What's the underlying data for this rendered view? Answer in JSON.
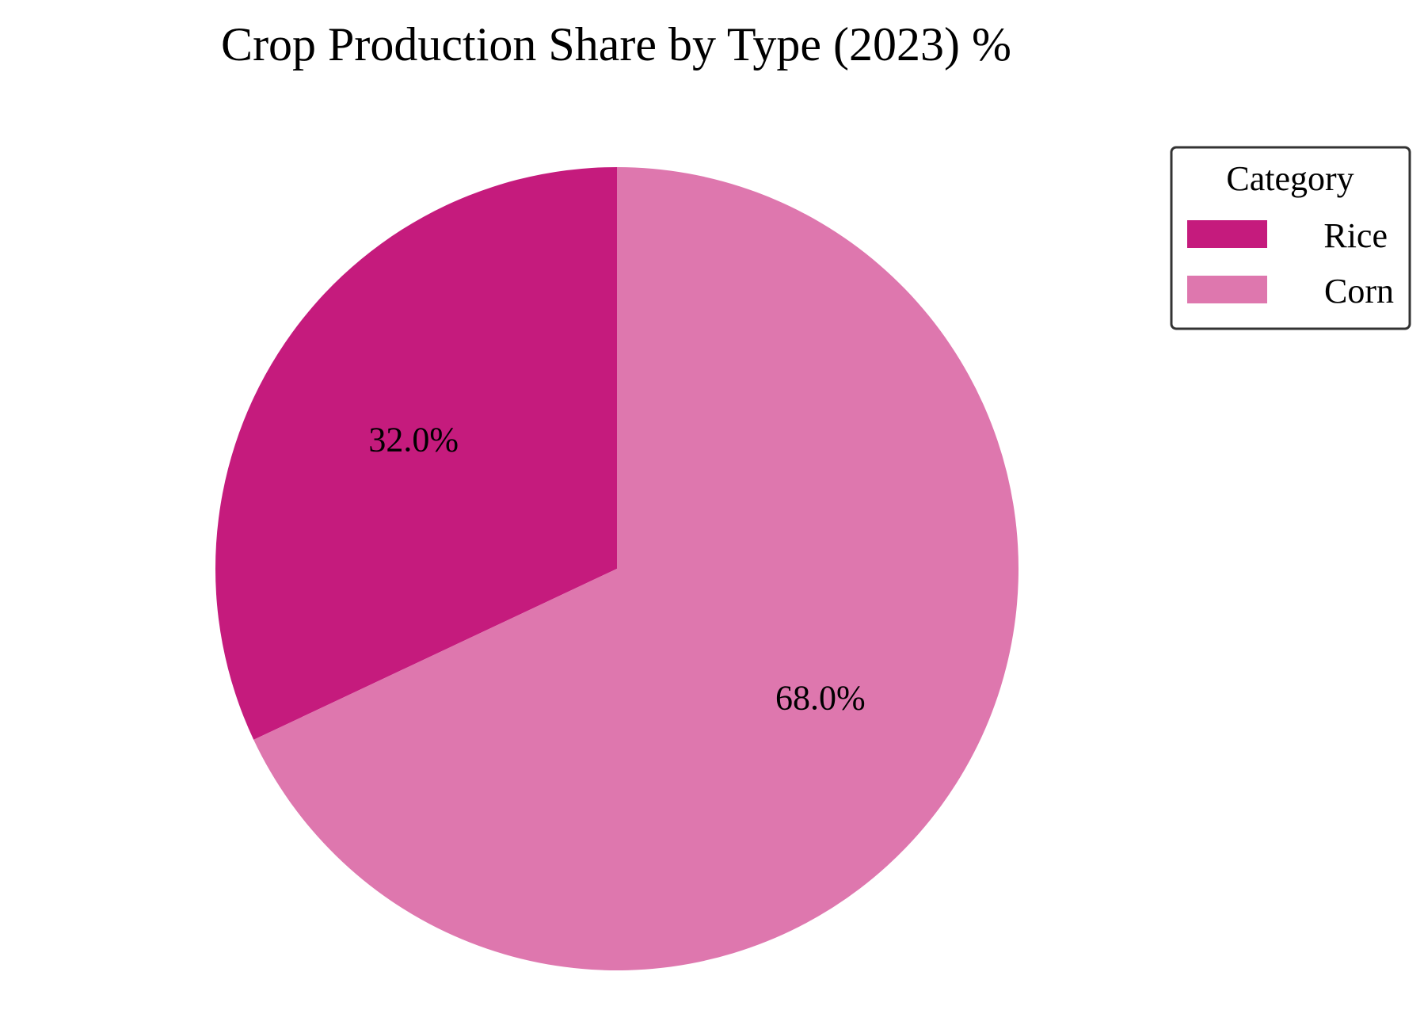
{
  "chart_data": {
    "type": "pie",
    "title": "Crop Production Share by Type (2023) %",
    "categories": [
      "Rice",
      "Corn"
    ],
    "values": [
      32.0,
      68.0
    ],
    "value_labels": [
      "32.0%",
      "68.0%"
    ],
    "colors": [
      "#c51b7d",
      "#de77ae"
    ],
    "start": "top (12 o'clock), counterclockwise",
    "legend": {
      "title": "Category",
      "position": "top-right",
      "entries": [
        "Rice",
        "Corn"
      ]
    }
  }
}
